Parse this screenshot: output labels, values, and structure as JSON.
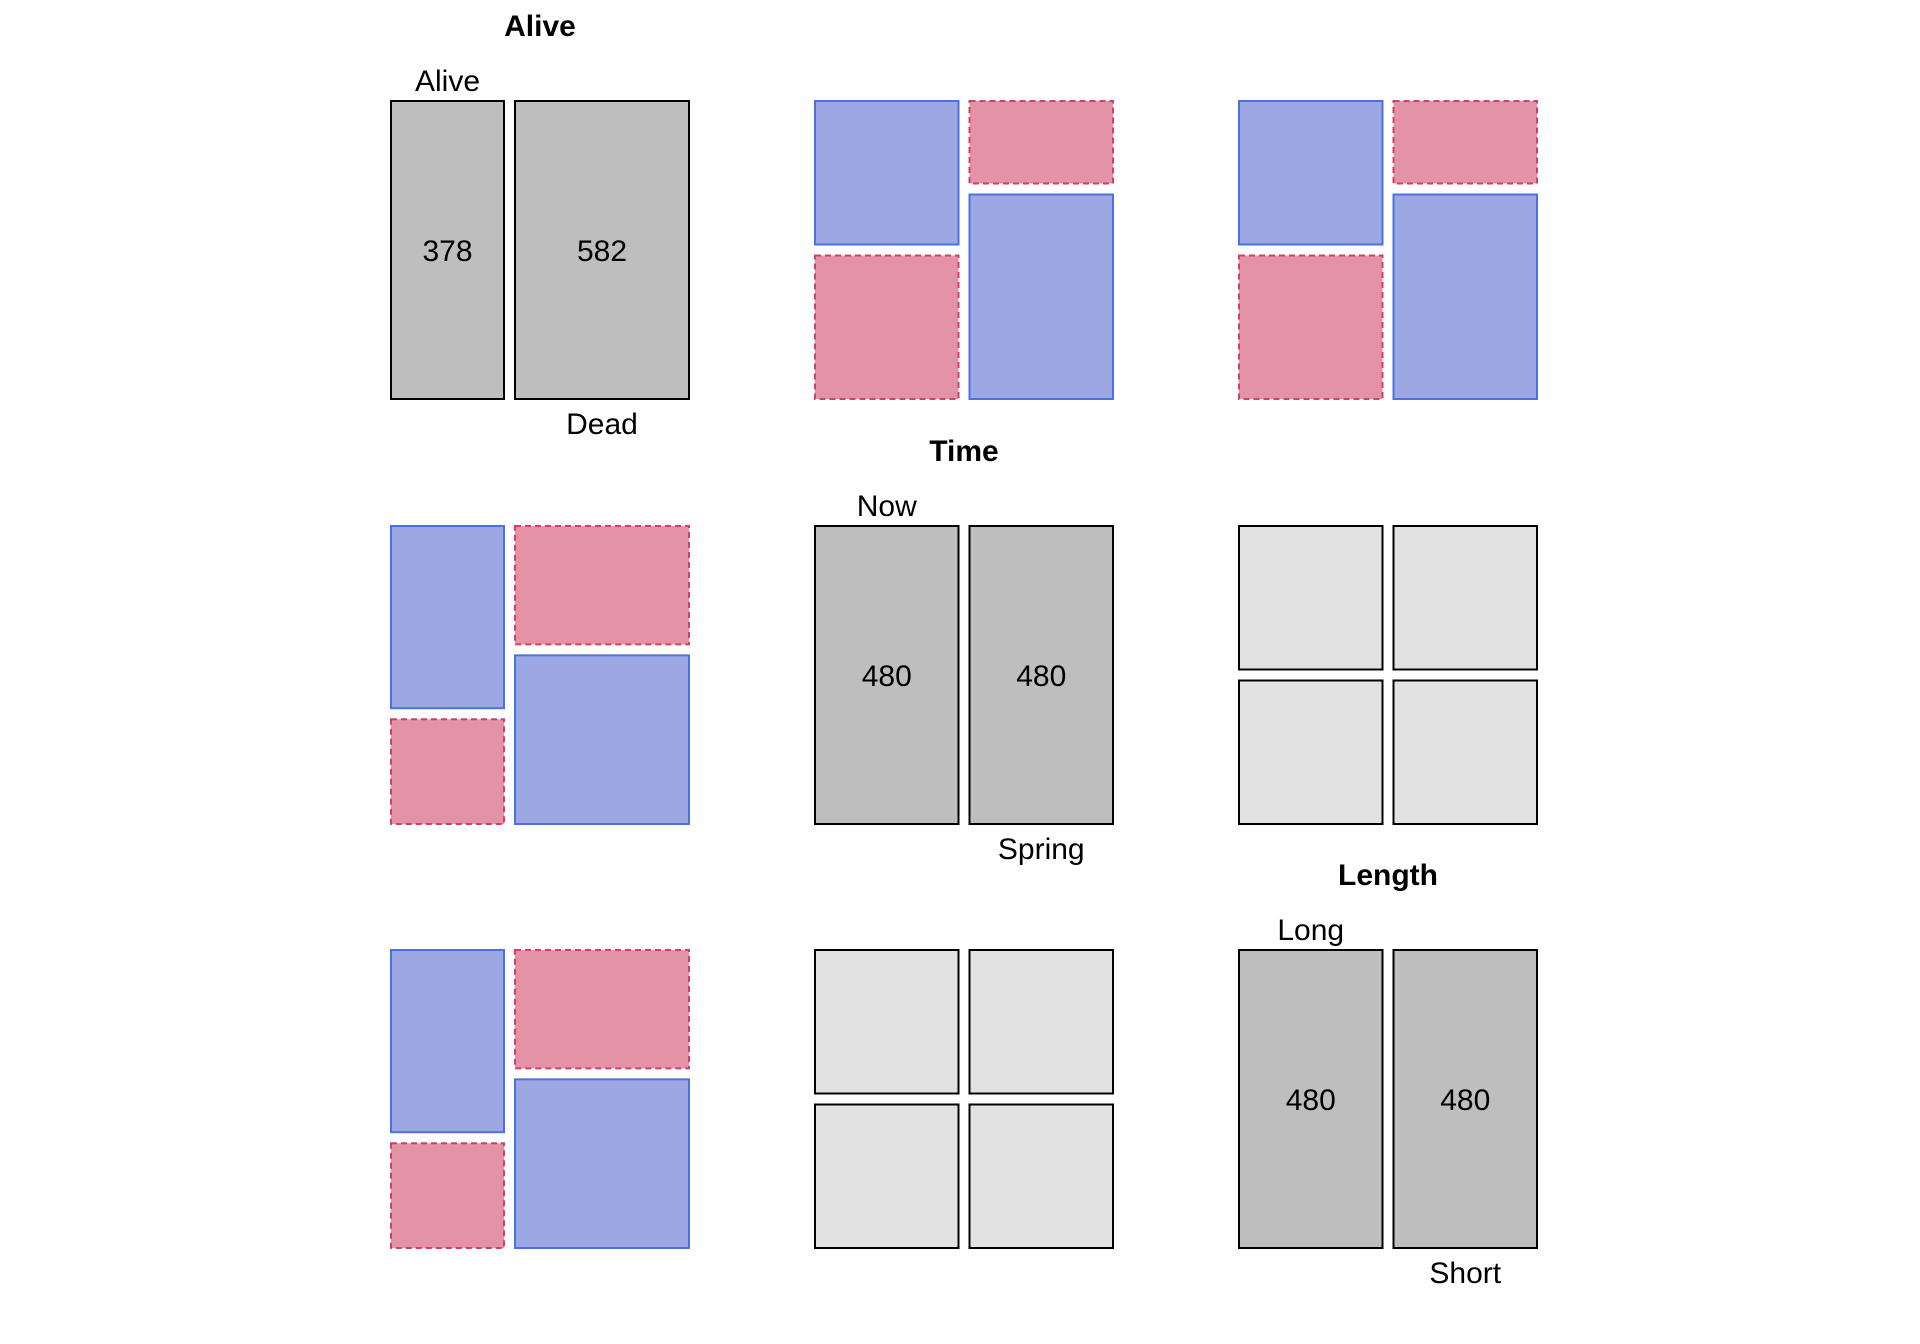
{
  "chart_data": {
    "type": "mosaic-pairs",
    "variables": [
      {
        "name": "Alive",
        "levels": [
          "Alive",
          "Dead"
        ],
        "counts": [
          378,
          582
        ]
      },
      {
        "name": "Time",
        "levels": [
          "Now",
          "Spring"
        ],
        "counts": [
          480,
          480
        ]
      },
      {
        "name": "Length",
        "levels": [
          "Long",
          "Short"
        ],
        "counts": [
          480,
          480
        ]
      }
    ],
    "pairs": [
      {
        "row": "Alive",
        "col": "Time",
        "table": [
          [
            240,
            138
          ],
          [
            240,
            342
          ]
        ]
      },
      {
        "row": "Alive",
        "col": "Length",
        "table": [
          [
            240,
            138
          ],
          [
            240,
            342
          ]
        ]
      },
      {
        "row": "Time",
        "col": "Length",
        "table": [
          [
            240,
            240
          ],
          [
            240,
            240
          ]
        ]
      }
    ],
    "colors": {
      "diagonal_fill": "#bebebe",
      "independent_fill": "#e2e2e2",
      "positive_strong": "#4a70e2",
      "negative_strong": "#d33e6a",
      "positive_light": "#9da8e3",
      "negative_light": "#e393a5",
      "box_border": "#000000"
    }
  }
}
